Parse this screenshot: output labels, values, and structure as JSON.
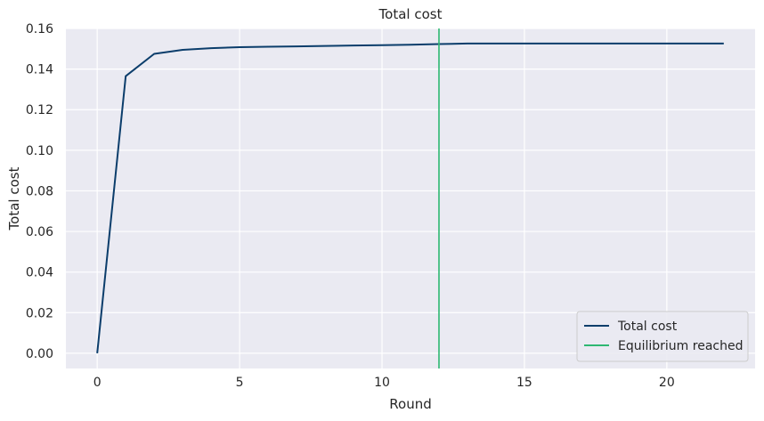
{
  "chart_data": {
    "type": "line",
    "title": "Total cost",
    "xlabel": "Round",
    "ylabel": "Total cost",
    "xlim": [
      -1.1,
      23.1
    ],
    "ylim": [
      -0.0075,
      0.16
    ],
    "xticks": [
      0,
      5,
      10,
      15,
      20
    ],
    "xtick_labels": [
      "0",
      "5",
      "10",
      "15",
      "20"
    ],
    "yticks": [
      0.0,
      0.02,
      0.04,
      0.06,
      0.08,
      0.1,
      0.12,
      0.14,
      0.16
    ],
    "ytick_labels": [
      "0.00",
      "0.02",
      "0.04",
      "0.06",
      "0.08",
      "0.10",
      "0.12",
      "0.14",
      "0.16"
    ],
    "grid": true,
    "legend_position": "lower-right",
    "series": [
      {
        "name": "Total cost",
        "color": "#0b3d6b",
        "x": [
          0,
          1,
          2,
          3,
          4,
          5,
          6,
          7,
          8,
          9,
          10,
          11,
          12,
          13,
          14,
          15,
          16,
          17,
          18,
          19,
          20,
          21,
          22
        ],
        "y": [
          0.0,
          0.1365,
          0.1475,
          0.1495,
          0.1503,
          0.1508,
          0.151,
          0.1512,
          0.1514,
          0.1516,
          0.1518,
          0.152,
          0.1523,
          0.1526,
          0.1526,
          0.1526,
          0.1526,
          0.1526,
          0.1526,
          0.1526,
          0.1526,
          0.1526,
          0.1526
        ]
      }
    ],
    "vlines": [
      {
        "name": "Equilibrium reached",
        "x": 12,
        "color": "#2eb872"
      }
    ],
    "background_color": "#eaeaf2",
    "grid_color": "#ffffff"
  }
}
